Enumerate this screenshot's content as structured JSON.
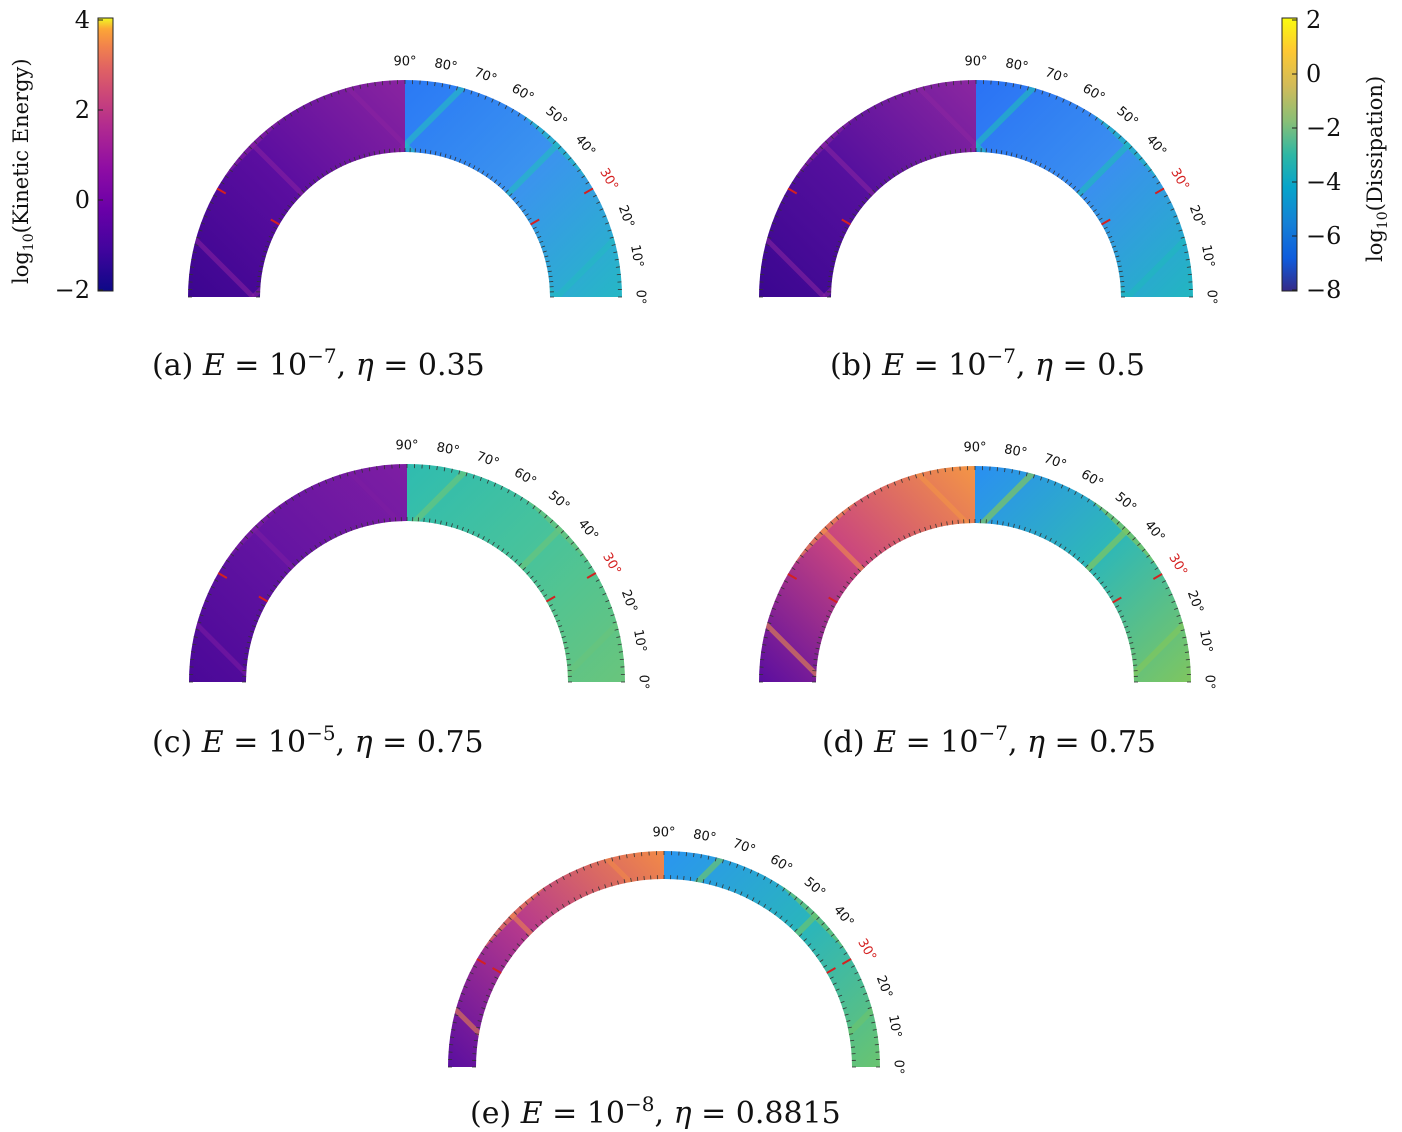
{
  "colorbar_left": {
    "label": "log10(Kinetic Energy)",
    "label_prefix": "log",
    "label_sub": "10",
    "label_suffix": "(Kinetic Energy)",
    "ticks": [
      "4",
      "2",
      "0",
      "−2"
    ],
    "range": [
      -2,
      4
    ],
    "colormap": "plasma"
  },
  "colorbar_right": {
    "label": "log10(Dissipation)",
    "label_prefix": "log",
    "label_sub": "10",
    "label_suffix": "(Dissipation)",
    "ticks": [
      "2",
      "0",
      "−2",
      "−4",
      "−6",
      "−8"
    ],
    "range": [
      -8,
      2
    ],
    "colormap": "parula"
  },
  "angle_ticks": [
    "0°",
    "10°",
    "20°",
    "30°",
    "40°",
    "50°",
    "60°",
    "70°",
    "80°",
    "90°"
  ],
  "highlight_angle": "30°",
  "chart_data": [
    {
      "type": "heatmap",
      "caption": "(a) E = 10^−7, η = 0.35",
      "cap_pre": "(a) ",
      "cap_E": "10",
      "cap_exp": "−7",
      "cap_eta": "0.35",
      "E": "10^-7",
      "eta": 0.35,
      "left_field": "Kinetic Energy",
      "right_field": "Dissipation",
      "left_colors": [
        "#3b0590",
        "#5c0ea0",
        "#8a24a0"
      ],
      "right_colors": [
        "#2a79f5",
        "#3b93ef",
        "#26b7c5"
      ]
    },
    {
      "type": "heatmap",
      "caption": "(b) E = 10^−7, η = 0.5",
      "cap_pre": "(b) ",
      "cap_E": "10",
      "cap_exp": "−7",
      "cap_eta": "0.5",
      "E": "10^-7",
      "eta": 0.5,
      "left_colors": [
        "#3a0690",
        "#56109e",
        "#8c27a0"
      ],
      "right_colors": [
        "#2a72f5",
        "#3a8ff0",
        "#22b6c0"
      ]
    },
    {
      "type": "heatmap",
      "caption": "(c) E = 10^−5, η = 0.75",
      "cap_pre": "(c) ",
      "cap_E": "10",
      "cap_exp": "−5",
      "cap_eta": "0.75",
      "E": "10^-5",
      "eta": 0.75,
      "left_colors": [
        "#4a0898",
        "#6414a2",
        "#7e1ea3"
      ],
      "right_colors": [
        "#2fbcb0",
        "#49c39a",
        "#69c57c"
      ]
    },
    {
      "type": "heatmap",
      "caption": "(d) E = 10^−7, η = 0.75",
      "cap_pre": "(d) ",
      "cap_E": "10",
      "cap_exp": "−7",
      "cap_eta": "0.75",
      "E": "10^-7",
      "eta": 0.75,
      "left_colors": [
        "#5a0da0",
        "#c9457f",
        "#f49645"
      ],
      "right_colors": [
        "#2a8ff2",
        "#2fb8b6",
        "#7fc65f"
      ]
    },
    {
      "type": "heatmap",
      "caption": "(e) E = 10^−8, η = 0.8815",
      "cap_pre": "(e) ",
      "cap_E": "10",
      "cap_exp": "−8",
      "cap_eta": "0.8815",
      "E": "10^-8",
      "eta": 0.8815,
      "left_colors": [
        "#5a0ea0",
        "#b73a8c",
        "#f28a47"
      ],
      "right_colors": [
        "#2a95f0",
        "#2ab5bc",
        "#6ac470"
      ]
    }
  ]
}
